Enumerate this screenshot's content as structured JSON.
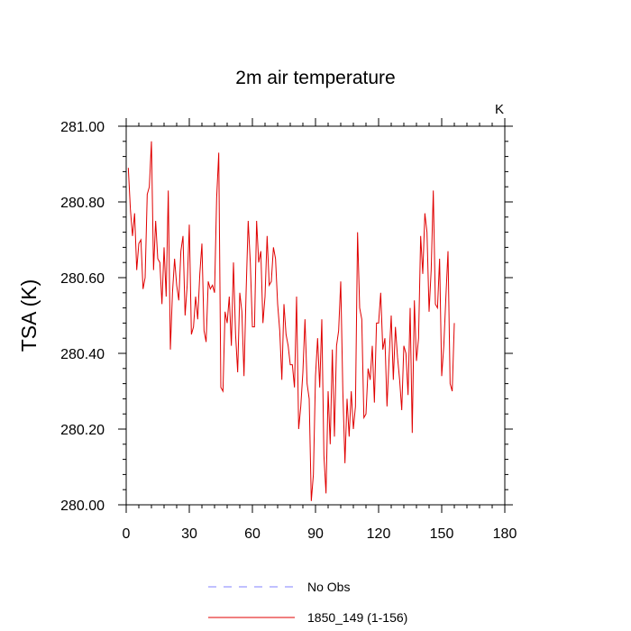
{
  "chart_data": {
    "type": "line",
    "title": "2m air temperature",
    "ylabel": "TSA  (K)",
    "units": "K",
    "xlim": [
      0,
      180
    ],
    "ylim": [
      280.0,
      281.0
    ],
    "xticks": [
      0,
      30,
      60,
      90,
      120,
      150,
      180
    ],
    "xtick_labels": [
      "0",
      "30",
      "60",
      "90",
      "120",
      "150",
      "180"
    ],
    "yticks": [
      280.0,
      280.2,
      280.4,
      280.6,
      280.8,
      281.0
    ],
    "ytick_labels": [
      "280.00",
      "280.20",
      "280.40",
      "280.60",
      "280.80",
      "281.00"
    ],
    "legend": [
      {
        "label": "No Obs",
        "color": "#8080ff",
        "style": "dashed"
      },
      {
        "label": "1850_149 (1-156)",
        "color": "#e00000",
        "style": "solid"
      }
    ],
    "series": [
      {
        "name": "1850_149 (1-156)",
        "color": "#e00000",
        "x_start": 1,
        "values": [
          280.89,
          280.78,
          280.71,
          280.77,
          280.62,
          280.69,
          280.7,
          280.57,
          280.6,
          280.82,
          280.84,
          280.96,
          280.62,
          280.75,
          280.65,
          280.64,
          280.53,
          280.68,
          280.55,
          280.83,
          280.41,
          280.56,
          280.65,
          280.58,
          280.54,
          280.67,
          280.71,
          280.5,
          280.58,
          280.74,
          280.45,
          280.47,
          280.55,
          280.49,
          280.61,
          280.69,
          280.46,
          280.43,
          280.59,
          280.57,
          280.58,
          280.56,
          280.81,
          280.93,
          280.31,
          280.3,
          280.51,
          280.48,
          280.55,
          280.42,
          280.64,
          280.45,
          280.35,
          280.56,
          280.51,
          280.34,
          280.56,
          280.75,
          280.64,
          280.47,
          280.47,
          280.75,
          280.64,
          280.67,
          280.48,
          280.55,
          280.71,
          280.58,
          280.59,
          280.68,
          280.65,
          280.53,
          280.46,
          280.33,
          280.53,
          280.45,
          280.42,
          280.37,
          280.37,
          280.31,
          280.55,
          280.2,
          280.26,
          280.35,
          280.49,
          280.32,
          280.28,
          280.01,
          280.08,
          280.34,
          280.44,
          280.31,
          280.49,
          280.13,
          280.03,
          280.3,
          280.16,
          280.41,
          280.18,
          280.42,
          280.46,
          280.59,
          280.3,
          280.11,
          280.28,
          280.18,
          280.3,
          280.2,
          280.26,
          280.72,
          280.52,
          280.49,
          280.23,
          280.24,
          280.36,
          280.33,
          280.42,
          280.27,
          280.48,
          280.48,
          280.56,
          280.41,
          280.44,
          280.26,
          280.39,
          280.5,
          280.33,
          280.47,
          280.39,
          280.33,
          280.25,
          280.42,
          280.4,
          280.29,
          280.52,
          280.19,
          280.54,
          280.38,
          280.44,
          280.71,
          280.61,
          280.77,
          280.72,
          280.51,
          280.62,
          280.83,
          280.53,
          280.52,
          280.65,
          280.34,
          280.42,
          280.55,
          280.67,
          280.32,
          280.3,
          280.48
        ]
      },
      {
        "name": "No Obs",
        "color": "#8080ff",
        "values": []
      }
    ]
  }
}
